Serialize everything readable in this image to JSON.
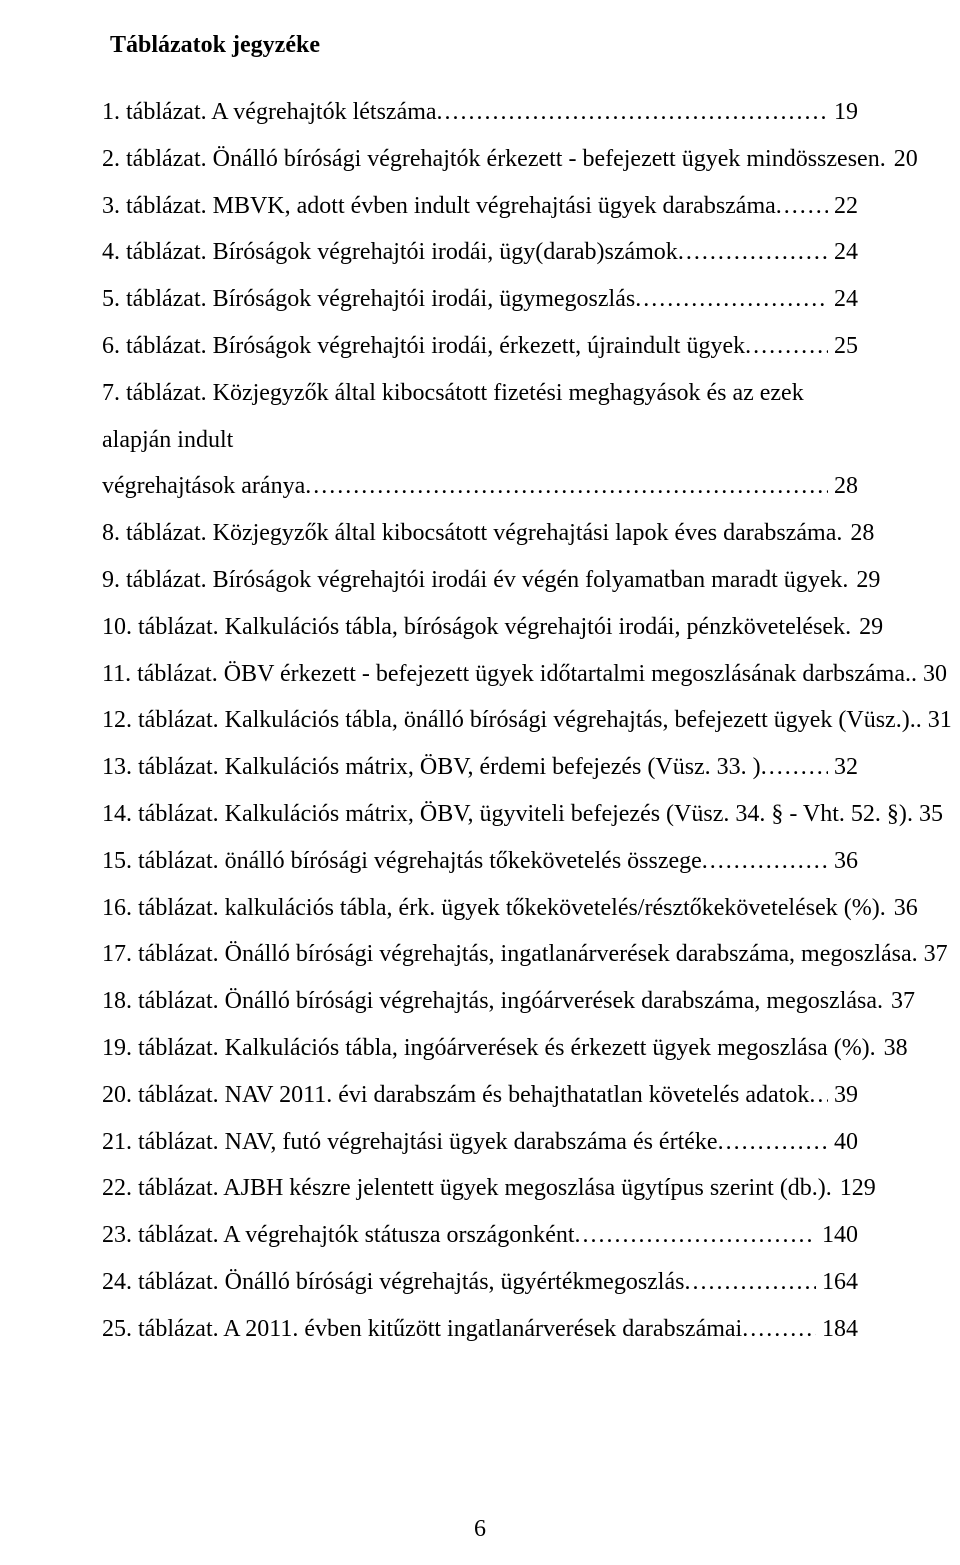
{
  "title": "Táblázatok jegyzéke",
  "page_number": "6",
  "entries": [
    {
      "text": "1. táblázat. A végrehajtók létszáma",
      "page": "19",
      "multi": false
    },
    {
      "text": "2. táblázat. Önálló bírósági végrehajtók érkezett - befejezett ügyek mindösszesen",
      "page": "20",
      "multi": false
    },
    {
      "text": "3. táblázat. MBVK, adott évben indult végrehajtási ügyek darabszáma",
      "page": "22",
      "multi": false
    },
    {
      "text": "4. táblázat. Bíróságok végrehajtói irodái, ügy(darab)számok",
      "page": "24",
      "multi": false
    },
    {
      "text": "5. táblázat. Bíróságok végrehajtói irodái, ügymegoszlás",
      "page": "24",
      "multi": false
    },
    {
      "text": "6. táblázat. Bíróságok végrehajtói irodái, érkezett, újraindult ügyek",
      "page": "25",
      "multi": false
    },
    {
      "text": "7. táblázat. Közjegyzők által kibocsátott fizetési meghagyások és az ezek alapján indult ",
      "text2": "végrehajtások aránya",
      "page": "28",
      "multi": true
    },
    {
      "text": "8. táblázat. Közjegyzők által kibocsátott végrehajtási lapok éves darabszáma",
      "page": "28",
      "multi": false
    },
    {
      "text": "9. táblázat. Bíróságok végrehajtói irodái év végén folyamatban maradt ügyek",
      "page": "29",
      "multi": false
    },
    {
      "text": "10. táblázat. Kalkulációs tábla, bíróságok végrehajtói irodái, pénzkövetelések",
      "page": "29",
      "multi": false
    },
    {
      "text": "11. táblázat. ÖBV érkezett - befejezett ügyek időtartalmi megoszlásának darbszáma",
      "page": "30",
      "multi": false,
      "sep": ".. "
    },
    {
      "text": "12. táblázat. Kalkulációs tábla, önálló bírósági végrehajtás, befejezett ügyek (Vüsz.)",
      "page": "31",
      "multi": false,
      "sep": ".. "
    },
    {
      "text": "13. táblázat. Kalkulációs mátrix, ÖBV, érdemi befejezés (Vüsz. 33. )",
      "page": "32",
      "multi": false
    },
    {
      "text": "14. táblázat. Kalkulációs mátrix, ÖBV, ügyviteli befejezés (Vüsz. 34. § - Vht. 52. §)",
      "page": "35",
      "multi": false,
      "sep": ". "
    },
    {
      "text": "15. táblázat. önálló bírósági végrehajtás tőkekövetelés összege",
      "page": "36",
      "multi": false
    },
    {
      "text": "16. táblázat. kalkulációs tábla, érk. ügyek tőkekövetelés/résztőkekövetelések (%)",
      "page": "36",
      "multi": false
    },
    {
      "text": "17. táblázat. Önálló bírósági végrehajtás, ingatlanárverések darabszáma, megoszlása",
      "page": "37",
      "multi": false,
      "sep": ". "
    },
    {
      "text": "18. táblázat. Önálló bírósági végrehajtás, ingóárverések darabszáma, megoszlása",
      "page": "37",
      "multi": false
    },
    {
      "text": "19. táblázat. Kalkulációs tábla, ingóárverések és érkezett ügyek megoszlása (%)",
      "page": "38",
      "multi": false
    },
    {
      "text": "20. táblázat. NAV 2011. évi darabszám és behajthatatlan követelés adatok",
      "page": "39",
      "multi": false
    },
    {
      "text": "21. táblázat. NAV, futó végrehajtási ügyek darabszáma és értéke",
      "page": "40",
      "multi": false
    },
    {
      "text": "22. táblázat. AJBH készre jelentett ügyek megoszlása ügytípus szerint (db.)",
      "page": "129",
      "multi": false
    },
    {
      "text": "23. táblázat. A végrehajtók státusza országonként",
      "page": "140",
      "multi": false
    },
    {
      "text": "24. táblázat. Önálló bírósági végrehajtás, ügyértékmegoszlás",
      "page": "164",
      "multi": false
    },
    {
      "text": "25. táblázat. A 2011. évben kitűzött ingatlanárverések darabszámai",
      "page": "184",
      "multi": false
    }
  ]
}
